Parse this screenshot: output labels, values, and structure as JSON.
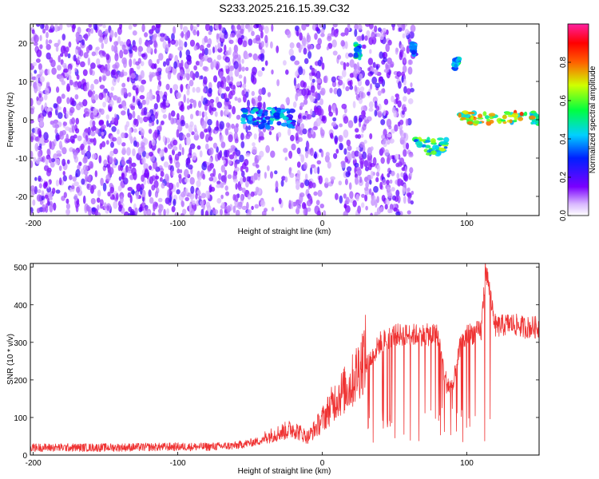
{
  "chart_data": [
    {
      "type": "heatmap",
      "title": "S233.2025.216.15.39.C32",
      "xlabel": "Height of straight line (km)",
      "ylabel": "Frequency (Hz)",
      "xlim": [
        -202,
        150
      ],
      "ylim": [
        -25,
        25
      ],
      "xticks": [
        -200,
        -100,
        0,
        100
      ],
      "yticks": [
        -20,
        -10,
        0,
        10,
        20
      ],
      "colorbar": {
        "label": "Normalized spectral amplitude",
        "range": [
          0.0,
          1.0
        ],
        "ticks": [
          "0.0",
          "0.2",
          "0.4",
          "0.6",
          "0.8"
        ],
        "colormap": "rainbow"
      },
      "features": [
        {
          "x_range": [
            -202,
            63
          ],
          "freq_range": [
            -25,
            25
          ],
          "description": "scattered noise",
          "amplitude": 0.15
        },
        {
          "x_range": [
            -55,
            -20
          ],
          "freq_range": [
            -2,
            3
          ],
          "description": "band",
          "amplitude": 0.4
        },
        {
          "x_range": [
            23,
            26
          ],
          "freq_range": [
            15,
            20
          ],
          "description": "spot",
          "amplitude": 0.45
        },
        {
          "x_range": [
            62,
            64
          ],
          "freq_range": [
            17,
            20
          ],
          "description": "spot",
          "amplitude": 0.35
        },
        {
          "x_range": [
            64,
            87
          ],
          "freq_range": [
            -9,
            -5
          ],
          "description": "band",
          "amplitude": 0.55
        },
        {
          "x_range": [
            91,
            95
          ],
          "freq_range": [
            13,
            16
          ],
          "description": "spot",
          "amplitude": 0.45
        },
        {
          "x_range": [
            94,
            150
          ],
          "freq_range": [
            -1,
            2
          ],
          "description": "band",
          "amplitude": 0.7
        }
      ]
    },
    {
      "type": "line",
      "xlabel": "Height of straight line (km)",
      "ylabel": "SNR (10 * v/v)",
      "xlim": [
        -202,
        150
      ],
      "ylim": [
        0,
        510
      ],
      "xticks": [
        -200,
        -100,
        0,
        100
      ],
      "yticks": [
        0,
        100,
        200,
        300,
        400,
        500
      ],
      "color": "#ef3333",
      "series": [
        {
          "x": [
            -202,
            -150,
            -100,
            -80,
            -60,
            -40,
            -20,
            -10,
            0,
            10,
            20,
            30,
            40,
            50,
            60,
            70,
            80,
            85,
            90,
            95,
            100,
            110,
            113,
            120,
            130,
            140,
            150
          ],
          "y": [
            20,
            20,
            22,
            22,
            25,
            40,
            60,
            40,
            80,
            130,
            160,
            230,
            300,
            320,
            320,
            320,
            320,
            200,
            170,
            280,
            320,
            330,
            500,
            340,
            350,
            340,
            340
          ]
        }
      ]
    }
  ]
}
